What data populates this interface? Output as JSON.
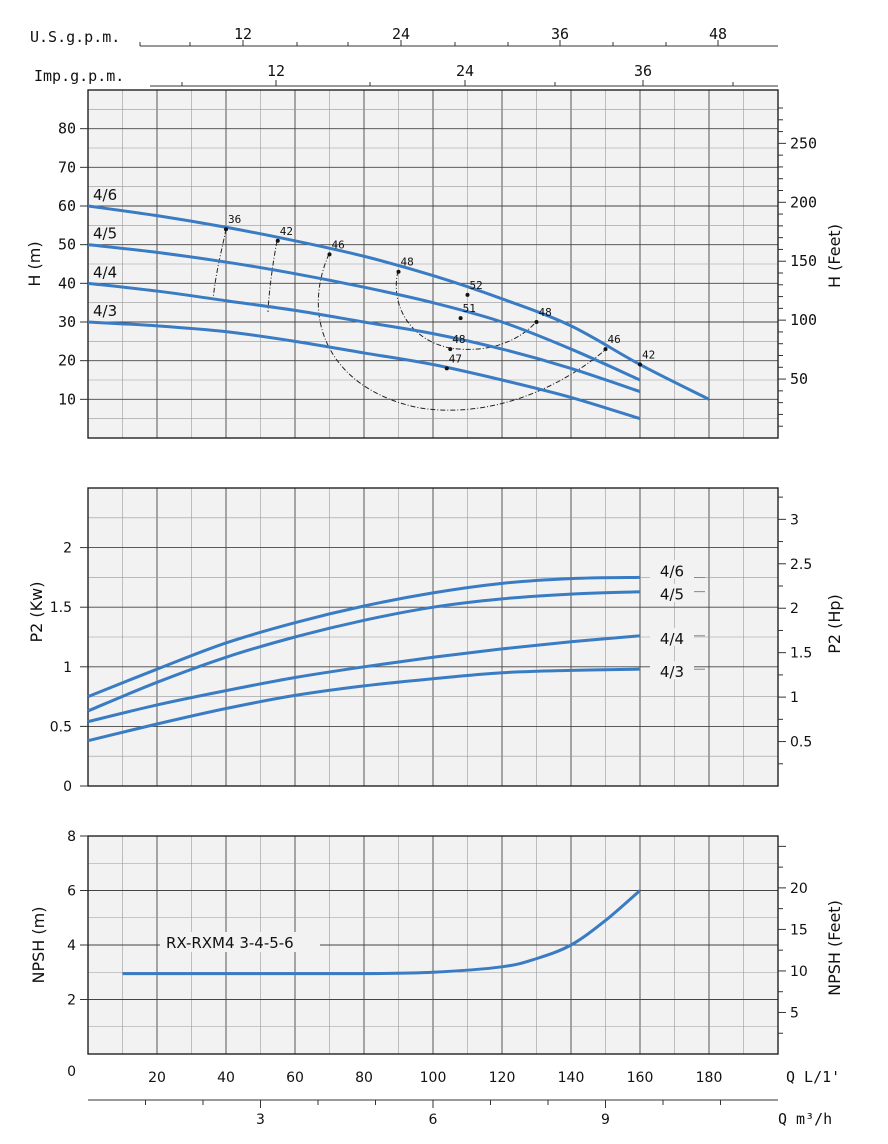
{
  "chart_data": [
    {
      "type": "line",
      "name": "head",
      "ylabel_left": "H (m)",
      "ylabel_right": "H (Feet)",
      "top_scale1_label": "U.S.g.p.m.",
      "top_scale1_ticks": [
        "12",
        "24",
        "36",
        "48"
      ],
      "top_scale2_label": "Imp.g.p.m.",
      "top_scale2_ticks": [
        "12",
        "24",
        "36"
      ],
      "y_ticks_left": [
        "10",
        "20",
        "30",
        "40",
        "50",
        "60",
        "70",
        "80"
      ],
      "y_ticks_right": [
        "50",
        "100",
        "150",
        "200",
        "250"
      ],
      "xlim": [
        0,
        200
      ],
      "ylim": [
        0,
        90
      ],
      "series": [
        {
          "name": "4/6",
          "x": [
            0,
            20,
            40,
            60,
            80,
            100,
            120,
            140,
            160,
            180
          ],
          "y": [
            60,
            57.5,
            54.5,
            51,
            47,
            42,
            36,
            29,
            19,
            10
          ]
        },
        {
          "name": "4/5",
          "x": [
            0,
            20,
            40,
            60,
            80,
            100,
            120,
            140,
            160
          ],
          "y": [
            50,
            48,
            45.5,
            42.5,
            39,
            35,
            30,
            23,
            15
          ]
        },
        {
          "name": "4/4",
          "x": [
            0,
            20,
            40,
            60,
            80,
            100,
            120,
            140,
            160
          ],
          "y": [
            40,
            38,
            35.5,
            33,
            30,
            27,
            23,
            18,
            12
          ]
        },
        {
          "name": "4/3",
          "x": [
            0,
            20,
            40,
            60,
            80,
            100,
            120,
            140,
            160
          ],
          "y": [
            30,
            29,
            27.5,
            25,
            22,
            19,
            15,
            10.5,
            5
          ]
        }
      ],
      "efficiency_labels": [
        {
          "text": "36",
          "x": 40,
          "y": 54
        },
        {
          "text": "42",
          "x": 55,
          "y": 51
        },
        {
          "text": "46",
          "x": 70,
          "y": 47.5
        },
        {
          "text": "48",
          "x": 90,
          "y": 43
        },
        {
          "text": "52",
          "x": 110,
          "y": 37
        },
        {
          "text": "51",
          "x": 108,
          "y": 31
        },
        {
          "text": "48",
          "x": 130,
          "y": 30
        },
        {
          "text": "48",
          "x": 105,
          "y": 23
        },
        {
          "text": "47",
          "x": 104,
          "y": 18
        },
        {
          "text": "46",
          "x": 150,
          "y": 23
        },
        {
          "text": "42",
          "x": 160,
          "y": 19
        }
      ]
    },
    {
      "type": "line",
      "name": "power",
      "ylabel_left": "P2 (Kw)",
      "ylabel_right": "P2 (Hp)",
      "y_ticks_left": [
        "0",
        "0.5",
        "1",
        "1.5",
        "2"
      ],
      "y_ticks_right": [
        "0.5",
        "1",
        "1.5",
        "2",
        "2.5",
        "3"
      ],
      "xlim": [
        0,
        200
      ],
      "ylim": [
        0,
        2.5
      ],
      "series": [
        {
          "name": "4/6",
          "x": [
            0,
            20,
            40,
            60,
            80,
            100,
            120,
            140,
            160
          ],
          "y": [
            0.75,
            0.98,
            1.2,
            1.37,
            1.51,
            1.62,
            1.7,
            1.74,
            1.75
          ]
        },
        {
          "name": "4/5",
          "x": [
            0,
            20,
            40,
            60,
            80,
            100,
            120,
            140,
            160
          ],
          "y": [
            0.63,
            0.87,
            1.08,
            1.25,
            1.39,
            1.5,
            1.57,
            1.61,
            1.63
          ]
        },
        {
          "name": "4/4",
          "x": [
            0,
            20,
            40,
            60,
            80,
            100,
            120,
            140,
            160
          ],
          "y": [
            0.54,
            0.68,
            0.8,
            0.91,
            1.0,
            1.08,
            1.15,
            1.21,
            1.26
          ]
        },
        {
          "name": "4/3",
          "x": [
            0,
            20,
            40,
            60,
            80,
            100,
            120,
            140,
            160
          ],
          "y": [
            0.38,
            0.52,
            0.65,
            0.76,
            0.84,
            0.9,
            0.95,
            0.97,
            0.98
          ]
        }
      ]
    },
    {
      "type": "line",
      "name": "npsh",
      "ylabel_left": "NPSH (m)",
      "ylabel_right": "NPSH (Feet)",
      "y_ticks_left": [
        "0",
        "2",
        "4",
        "6",
        "8"
      ],
      "y_ticks_right": [
        "5",
        "10",
        "15",
        "20"
      ],
      "xlim": [
        0,
        200
      ],
      "ylim": [
        0,
        8
      ],
      "series": [
        {
          "name": "RX-RXM4 3-4-5-6",
          "x": [
            10,
            40,
            80,
            100,
            120,
            130,
            140,
            150,
            160
          ],
          "y": [
            2.95,
            2.95,
            2.95,
            3.0,
            3.2,
            3.5,
            4.0,
            4.9,
            6.0
          ]
        }
      ],
      "x_ticks": [
        "20",
        "40",
        "60",
        "80",
        "100",
        "120",
        "140",
        "160",
        "180"
      ],
      "xlabel": "Q L/1'",
      "x2_ticks": [
        "3",
        "6",
        "9"
      ],
      "x2label": "Q m³/h"
    }
  ],
  "colors": {
    "series": "#3a7cc4",
    "grid": "#555555",
    "bg": "#f2f2f2"
  }
}
